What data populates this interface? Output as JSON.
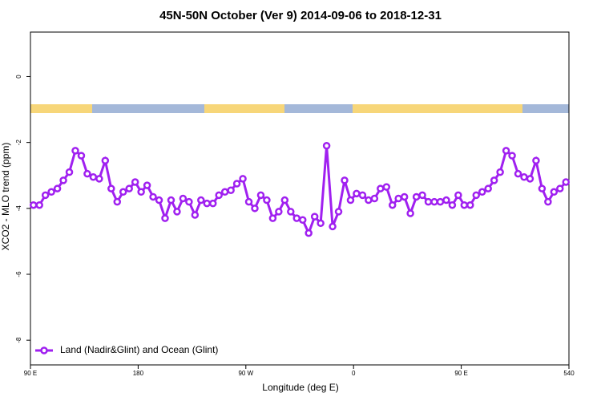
{
  "chart_data": {
    "type": "line",
    "title": "45N-50N October (Ver 9)   2014-09-06 to 2018-12-31",
    "x_label": "Longitude (deg E)",
    "y_label": "XCO2 - MLO trend (ppm)",
    "x": [
      92.5,
      97.5,
      102.5,
      107.5,
      112.5,
      117.5,
      122.5,
      127.5,
      132.5,
      137.5,
      142.5,
      147.5,
      152.5,
      157.5,
      162.5,
      167.5,
      172.5,
      177.5,
      182.5,
      187.5,
      192.5,
      197.5,
      202.5,
      207.5,
      212.5,
      217.5,
      222.5,
      227.5,
      232.5,
      237.5,
      242.5,
      247.5,
      252.5,
      257.5,
      262.5,
      267.5,
      272.5,
      277.5,
      282.5,
      287.5,
      292.5,
      297.5,
      302.5,
      307.5,
      312.5,
      317.5,
      322.5,
      327.5,
      332.5,
      337.5,
      342.5,
      347.5,
      352.5,
      357.5,
      362.5,
      367.5,
      372.5,
      377.5,
      382.5,
      387.5,
      392.5,
      397.5,
      402.5,
      407.5,
      412.5,
      417.5,
      422.5,
      427.5,
      432.5,
      437.5,
      442.5,
      447.5,
      452.5,
      457.5,
      462.5,
      467.5,
      472.5,
      477.5,
      482.5,
      487.5,
      492.5,
      497.5,
      502.5,
      507.5,
      512.5,
      517.5,
      522.5,
      527.5,
      532.5,
      537.5
    ],
    "series": [
      {
        "name": "Land (Nadir&Glint) and Ocean (Glint)",
        "color": "#a020f0",
        "values": [
          -3.9,
          -3.9,
          -3.6,
          -3.5,
          -3.4,
          -3.15,
          -2.9,
          -2.25,
          -2.4,
          -2.95,
          -3.05,
          -3.1,
          -2.55,
          -3.4,
          -3.8,
          -3.5,
          -3.4,
          -3.2,
          -3.5,
          -3.3,
          -3.65,
          -3.75,
          -4.3,
          -3.75,
          -4.1,
          -3.7,
          -3.8,
          -4.2,
          -3.75,
          -3.85,
          -3.85,
          -3.6,
          -3.5,
          -3.45,
          -3.25,
          -3.1,
          -3.8,
          -4.0,
          -3.6,
          -3.75,
          -4.3,
          -4.1,
          -3.75,
          -4.1,
          -4.3,
          -4.35,
          -4.75,
          -4.25,
          -4.45,
          -2.1,
          -4.55,
          -4.1,
          -3.15,
          -3.75,
          -3.55,
          -3.6,
          -3.75,
          -3.7,
          -3.4,
          -3.35,
          -3.9,
          -3.7,
          -3.65,
          -4.15,
          -3.65,
          -3.6,
          -3.8,
          -3.8,
          -3.8,
          -3.75,
          -3.9,
          -3.6,
          -3.9,
          -3.9,
          -3.6,
          -3.5,
          -3.4,
          -3.15,
          -2.9,
          -2.25,
          -2.4,
          -2.95,
          -3.05,
          -3.1,
          -2.55,
          -3.4,
          -3.8,
          -3.5,
          -3.4,
          -3.2
        ]
      }
    ],
    "xlim": [
      90,
      540
    ],
    "xticks": [
      {
        "value": 90,
        "label": "90 E"
      },
      180,
      {
        "value": 270,
        "label": "90 W"
      },
      {
        "value": 360,
        "label": "0"
      },
      {
        "value": 450,
        "label": "90 E"
      },
      540
    ],
    "ylim": [
      -8.75,
      1.35
    ],
    "yticks": [
      0,
      -2,
      -4,
      -6,
      -8
    ],
    "legend": "bottom-left"
  }
}
